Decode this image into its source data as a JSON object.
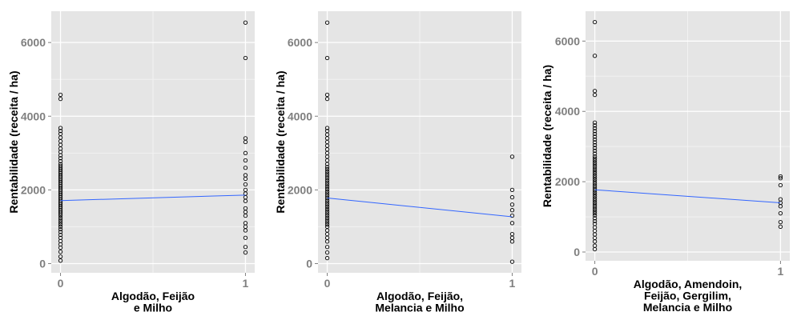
{
  "colors": {
    "panel_background": "#e5e5e5",
    "grid_major": "#ffffff",
    "grid_minor": "#f2f2f2",
    "points": "#000000",
    "fit_line": "#3366ff",
    "tick_text": "#7f7f7f"
  },
  "chart_data": [
    {
      "type": "scatter",
      "title": "",
      "xlabel": [
        "Algodão, Feijão",
        "e Milho"
      ],
      "ylabel": "Rentabilidade (receita / ha)",
      "xlim": [
        -0.05,
        1.05
      ],
      "ylim": [
        -250,
        6850
      ],
      "xticks": [
        0,
        1
      ],
      "xtick_labels": [
        "0",
        "1"
      ],
      "yticks": [
        0,
        2000,
        4000,
        6000
      ],
      "ytick_labels": [
        "0",
        "2000",
        "4000",
        "6000"
      ],
      "grid": true,
      "legend": "none",
      "x0_values": [
        80,
        190,
        320,
        430,
        520,
        610,
        700,
        780,
        860,
        930,
        1000,
        1060,
        1120,
        1180,
        1240,
        1300,
        1350,
        1400,
        1450,
        1500,
        1550,
        1600,
        1650,
        1700,
        1750,
        1800,
        1850,
        1900,
        1950,
        2000,
        2050,
        2100,
        2150,
        2200,
        2250,
        2300,
        2350,
        2400,
        2450,
        2500,
        2550,
        2600,
        2650,
        2700,
        2780,
        2860,
        2940,
        3030,
        3120,
        3220,
        3320,
        3420,
        3520,
        3600,
        3680,
        4470,
        4580
      ],
      "x1_values": [
        300,
        450,
        700,
        900,
        1000,
        1100,
        1300,
        1400,
        1500,
        1700,
        1800,
        1900,
        2000,
        2150,
        2300,
        2400,
        2600,
        2800,
        3000,
        3300,
        3400,
        5580,
        6540
      ],
      "fit_line": [
        [
          0,
          1710
        ],
        [
          1,
          1860
        ]
      ]
    },
    {
      "type": "scatter",
      "title": "",
      "xlabel": [
        "Algodão, Feijão,",
        "Melancia e Milho"
      ],
      "ylabel": "Rentabilidade (receita / ha)",
      "xlim": [
        -0.05,
        1.05
      ],
      "ylim": [
        -250,
        6850
      ],
      "xticks": [
        0,
        1
      ],
      "xtick_labels": [
        "0",
        "1"
      ],
      "yticks": [
        0,
        2000,
        4000,
        6000
      ],
      "ytick_labels": [
        "0",
        "2000",
        "4000",
        "6000"
      ],
      "grid": true,
      "legend": "none",
      "x0_values": [
        150,
        300,
        450,
        600,
        700,
        800,
        900,
        1000,
        1060,
        1120,
        1180,
        1240,
        1300,
        1360,
        1420,
        1480,
        1540,
        1600,
        1660,
        1720,
        1780,
        1840,
        1900,
        1960,
        2020,
        2080,
        2140,
        2200,
        2260,
        2320,
        2380,
        2440,
        2500,
        2560,
        2620,
        2700,
        2800,
        2900,
        3000,
        3100,
        3200,
        3300,
        3400,
        3500,
        3600,
        3680,
        4470,
        4580,
        5580,
        6540
      ],
      "x1_values": [
        50,
        600,
        700,
        800,
        1100,
        1300,
        1450,
        1600,
        1800,
        2000,
        2900
      ],
      "fit_line": [
        [
          0,
          1780
        ],
        [
          1,
          1270
        ]
      ]
    },
    {
      "type": "scatter",
      "title": "",
      "xlabel": [
        "Algodão, Amendoin,",
        "Feijão, Gergilim,",
        "Melancia e Milho"
      ],
      "ylabel": "Rentabilidade (receita / ha)",
      "xlim": [
        -0.05,
        1.05
      ],
      "ylim": [
        -250,
        6850
      ],
      "xticks": [
        0,
        1
      ],
      "xtick_labels": [
        "0",
        "1"
      ],
      "yticks": [
        0,
        2000,
        4000,
        6000
      ],
      "ytick_labels": [
        "0",
        "2000",
        "4000",
        "6000"
      ],
      "grid": true,
      "legend": "none",
      "x0_values": [
        80,
        180,
        300,
        400,
        500,
        600,
        700,
        800,
        880,
        960,
        1040,
        1100,
        1160,
        1220,
        1280,
        1340,
        1400,
        1460,
        1520,
        1580,
        1640,
        1700,
        1760,
        1820,
        1880,
        1940,
        2000,
        2060,
        2120,
        2180,
        2240,
        2300,
        2360,
        2420,
        2480,
        2540,
        2600,
        2660,
        2720,
        2800,
        2880,
        2960,
        3040,
        3120,
        3200,
        3280,
        3360,
        3440,
        3520,
        3600,
        3680,
        4470,
        4580,
        5580,
        6540
      ],
      "x1_values": [
        720,
        850,
        1100,
        1300,
        1400,
        1500,
        1900,
        2100,
        2150
      ],
      "fit_line": [
        [
          0,
          1770
        ],
        [
          1,
          1400
        ]
      ]
    }
  ]
}
